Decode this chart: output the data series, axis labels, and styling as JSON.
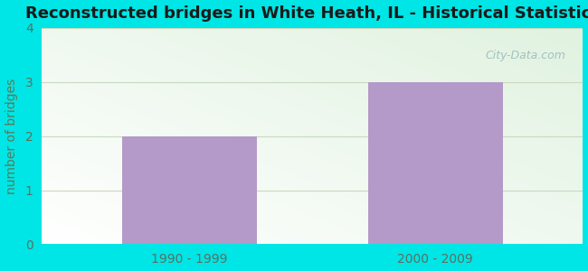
{
  "title": "Reconstructed bridges in White Heath, IL - Historical Statistics",
  "categories": [
    "1990 - 1999",
    "2000 - 2009"
  ],
  "values": [
    2,
    3
  ],
  "bar_color": "#b49ac8",
  "ylabel": "number of bridges",
  "ylim": [
    0,
    4
  ],
  "yticks": [
    0,
    1,
    2,
    3,
    4
  ],
  "title_fontsize": 13,
  "axis_label_color": "#5a7a5a",
  "tick_label_color": "#5a7060",
  "background_outer": "#00e5e5",
  "grid_color": "#c8d8c0",
  "watermark": "City-Data.com"
}
